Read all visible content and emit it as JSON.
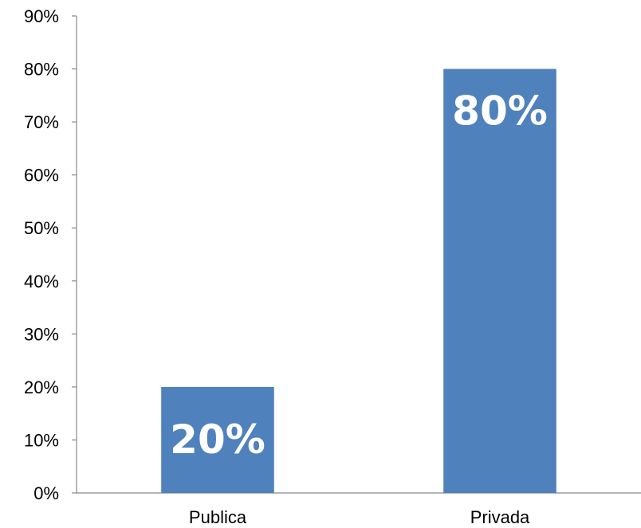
{
  "chart_data": {
    "type": "bar",
    "categories": [
      "Publica",
      "Privada"
    ],
    "values": [
      20,
      80
    ],
    "value_labels": [
      "20%",
      "80%"
    ],
    "title": "",
    "xlabel": "",
    "ylabel": "",
    "ylim": [
      0,
      90
    ],
    "yticks": [
      0,
      10,
      20,
      30,
      40,
      50,
      60,
      70,
      80,
      90
    ],
    "ytick_labels": [
      "0%",
      "10%",
      "20%",
      "30%",
      "40%",
      "50%",
      "60%",
      "70%",
      "80%",
      "90%"
    ],
    "grid": false,
    "legend": "none",
    "bar_color": "#4F81BD",
    "label_color": "#FFFFFF"
  }
}
